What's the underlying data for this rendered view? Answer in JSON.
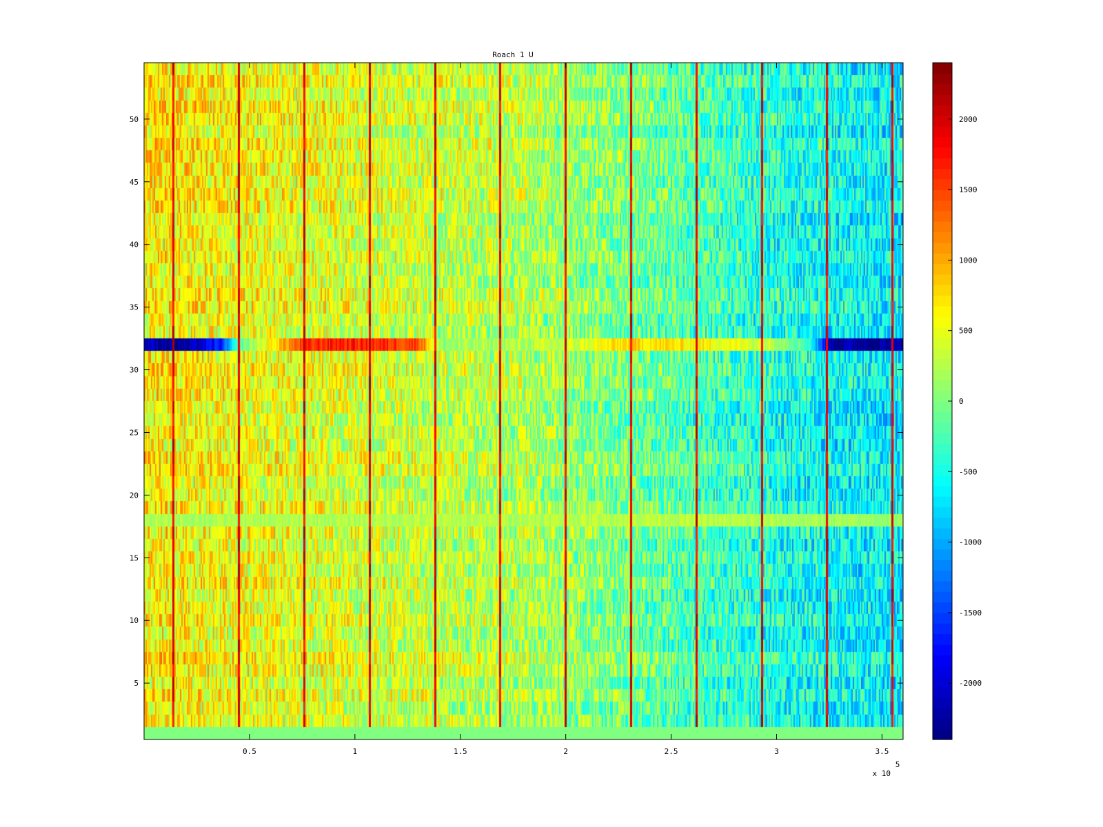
{
  "chart_data": {
    "type": "heatmap",
    "title": "Roach 1 U",
    "xlabel": "",
    "ylabel": "",
    "x_exponent_label": "x 10",
    "x_exponent_power": "5",
    "xlim": [
      0,
      360000
    ],
    "ylim": [
      0.5,
      54.5
    ],
    "x_ticks": [
      50000,
      100000,
      150000,
      200000,
      250000,
      300000,
      350000
    ],
    "x_tick_labels": [
      "0.5",
      "1",
      "1.5",
      "2",
      "2.5",
      "3",
      "3.5"
    ],
    "y_ticks": [
      5,
      10,
      15,
      20,
      25,
      30,
      35,
      40,
      45,
      50
    ],
    "y_tick_labels": [
      "5",
      "10",
      "15",
      "20",
      "25",
      "30",
      "35",
      "40",
      "45",
      "50"
    ],
    "colorbar": {
      "colormap": "jet",
      "clim": [
        -2400,
        2400
      ],
      "ticks": [
        2000,
        1500,
        1000,
        500,
        0,
        -500,
        -1000,
        -1500,
        -2000
      ],
      "tick_labels": [
        "2000",
        "1500",
        "1000",
        "500",
        "0",
        "-500",
        "-1000",
        "-1500",
        "-2000"
      ]
    },
    "rows": 54,
    "row_range": [
      1,
      54
    ],
    "row_trend_at_x": {
      "x": [
        0,
        60000,
        120000,
        180000,
        240000,
        300000,
        360000
      ],
      "typical_value": [
        700,
        550,
        400,
        250,
        -100,
        -450,
        -650
      ]
    },
    "special_rows": [
      {
        "row": 1,
        "description_value": 0
      },
      {
        "row": 18,
        "trend": [
          200,
          200,
          250,
          250,
          300,
          200,
          100
        ]
      },
      {
        "row": 32,
        "x": [
          0,
          20000,
          37000,
          45000,
          75000,
          90000,
          130000,
          140000,
          200000,
          230000,
          270000,
          300000,
          315000,
          325000,
          360000
        ],
        "values": [
          -2100,
          -2300,
          -1600,
          -200,
          1500,
          1700,
          1500,
          100,
          300,
          800,
          600,
          300,
          -300,
          -2200,
          -2300
        ]
      }
    ],
    "stripes": {
      "x": [
        13500,
        44500,
        75500,
        106500,
        137500,
        168500,
        199500,
        230500,
        261500,
        292500,
        323500,
        354500
      ],
      "value": 2200
    }
  }
}
